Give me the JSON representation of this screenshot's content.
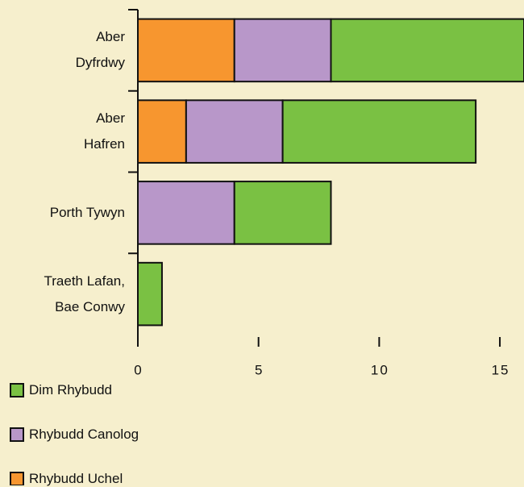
{
  "chart_data": {
    "type": "stacked-barh",
    "categories": [
      "Aber\nDyfrdwy",
      "Aber\nHafren",
      "Porth Tywyn",
      "Traeth Lafan,\nBae Conwy"
    ],
    "series": [
      {
        "name": "Rhybudd Uchel",
        "color": "#f7962f",
        "values": [
          4,
          2,
          0,
          0
        ]
      },
      {
        "name": "Rhybudd Canolog",
        "color": "#b897c9",
        "values": [
          4,
          4,
          4,
          0
        ]
      },
      {
        "name": "Dim Rhybudd",
        "color": "#7ac143",
        "values": [
          8,
          8,
          4,
          1
        ]
      }
    ],
    "xlim": [
      0,
      16
    ],
    "xticks": [
      0,
      5,
      10,
      15
    ],
    "legend": "bottom-left"
  }
}
